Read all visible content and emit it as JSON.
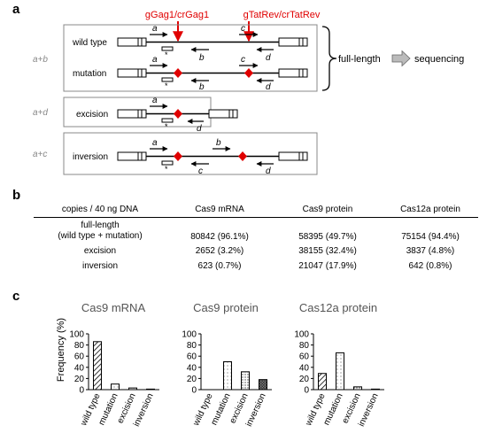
{
  "panel_a": {
    "label": "a",
    "guide_left": "gGag1/crGag1",
    "guide_right": "gTatRev/crTatRev",
    "groups": [
      {
        "primer_pair": "a+b",
        "rows": [
          "wild type",
          "mutation"
        ]
      },
      {
        "primer_pair": "a+d",
        "rows": [
          "excision"
        ]
      },
      {
        "primer_pair": "a+c",
        "rows": [
          "inversion"
        ]
      }
    ],
    "primers": {
      "a": "a",
      "b": "b",
      "c": "c",
      "d": "d"
    },
    "star": "*",
    "fulllength": "full-length",
    "sequencing": "sequencing"
  },
  "panel_b": {
    "label": "b",
    "headers": [
      "copies / 40 ng DNA",
      "Cas9 mRNA",
      "Cas9 protein",
      "Cas12a protein"
    ],
    "rows": [
      {
        "label1": "full-length",
        "label2": "(wild type + mutation)",
        "cells": [
          "80842 (96.1%)",
          "58395 (49.7%)",
          "75154 (94.4%)"
        ]
      },
      {
        "label1": "excision",
        "cells": [
          "2652 (3.2%)",
          "38155 (32.4%)",
          "3837 (4.8%)"
        ]
      },
      {
        "label1": "inversion",
        "cells": [
          "623 (0.7%)",
          "21047 (17.9%)",
          "642 (0.8%)"
        ]
      }
    ]
  },
  "panel_c": {
    "label": "c",
    "ylabel": "Frequency (%)",
    "yticks": [
      "0",
      "20",
      "40",
      "60",
      "80",
      "100"
    ],
    "categories": [
      "wild type",
      "mutation",
      "excision",
      "inversion"
    ]
  },
  "chart_data": [
    {
      "type": "bar",
      "title": "Cas9 mRNA",
      "ylabel": "Frequency (%)",
      "ylim": [
        0,
        100
      ],
      "categories": [
        "wild type",
        "mutation",
        "excision",
        "inversion"
      ],
      "values": [
        86,
        10,
        3,
        1
      ]
    },
    {
      "type": "bar",
      "title": "Cas9 protein",
      "ylabel": "Frequency (%)",
      "ylim": [
        0,
        100
      ],
      "categories": [
        "wild type",
        "mutation",
        "excision",
        "inversion"
      ],
      "values": [
        0,
        50,
        32,
        18
      ]
    },
    {
      "type": "bar",
      "title": "Cas12a protein",
      "ylabel": "Frequency (%)",
      "ylim": [
        0,
        100
      ],
      "categories": [
        "wild type",
        "mutation",
        "excision",
        "inversion"
      ],
      "values": [
        29,
        66,
        5,
        1
      ]
    }
  ],
  "colors": {
    "accent": "#e00000",
    "bar_outline": "#000000"
  }
}
